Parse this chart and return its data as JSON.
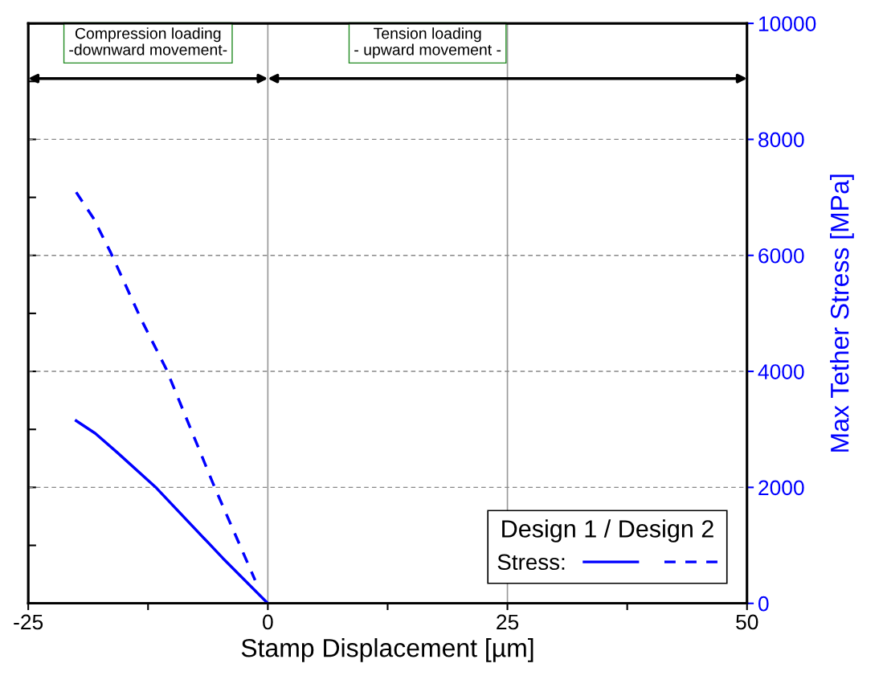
{
  "chart_data": {
    "type": "line",
    "xlabel": "Stamp Displacement [µm]",
    "y2label": "Max Tether Stress [MPa]",
    "legend_title": "Design 1 / Design 2",
    "annotations": [
      "Compression loading",
      "-downward movement-",
      "Tension loading",
      "- upward movement -",
      "Stress:"
    ],
    "xlim": [
      -25,
      50
    ],
    "xticks": [
      -25,
      {
        "value": -12.5,
        "label": null
      },
      0,
      {
        "value": 12.5,
        "label": null
      },
      25,
      {
        "value": 37.5,
        "label": null
      },
      50
    ],
    "y2lim": [
      0,
      10000
    ],
    "y2ticks": [
      0,
      2000,
      4000,
      6000,
      8000,
      10000
    ],
    "grid": true,
    "series": [
      {
        "color": "#0000ff",
        "axis": "y2",
        "line_style": "solid",
        "x": [
          -20,
          -18,
          -15.7,
          -11.75,
          -4.7,
          0
        ],
        "values": [
          3150,
          2930,
          2600,
          2010,
          780,
          0
        ]
      },
      {
        "color": "#0000ff",
        "axis": "y2",
        "line_style": "dashed",
        "x": [
          -20,
          -18.2,
          -16.4,
          -13.2,
          -10.6,
          -5.55,
          -1.33
        ],
        "values": [
          7090,
          6640,
          6050,
          4890,
          4040,
          2000,
          400
        ]
      }
    ]
  }
}
